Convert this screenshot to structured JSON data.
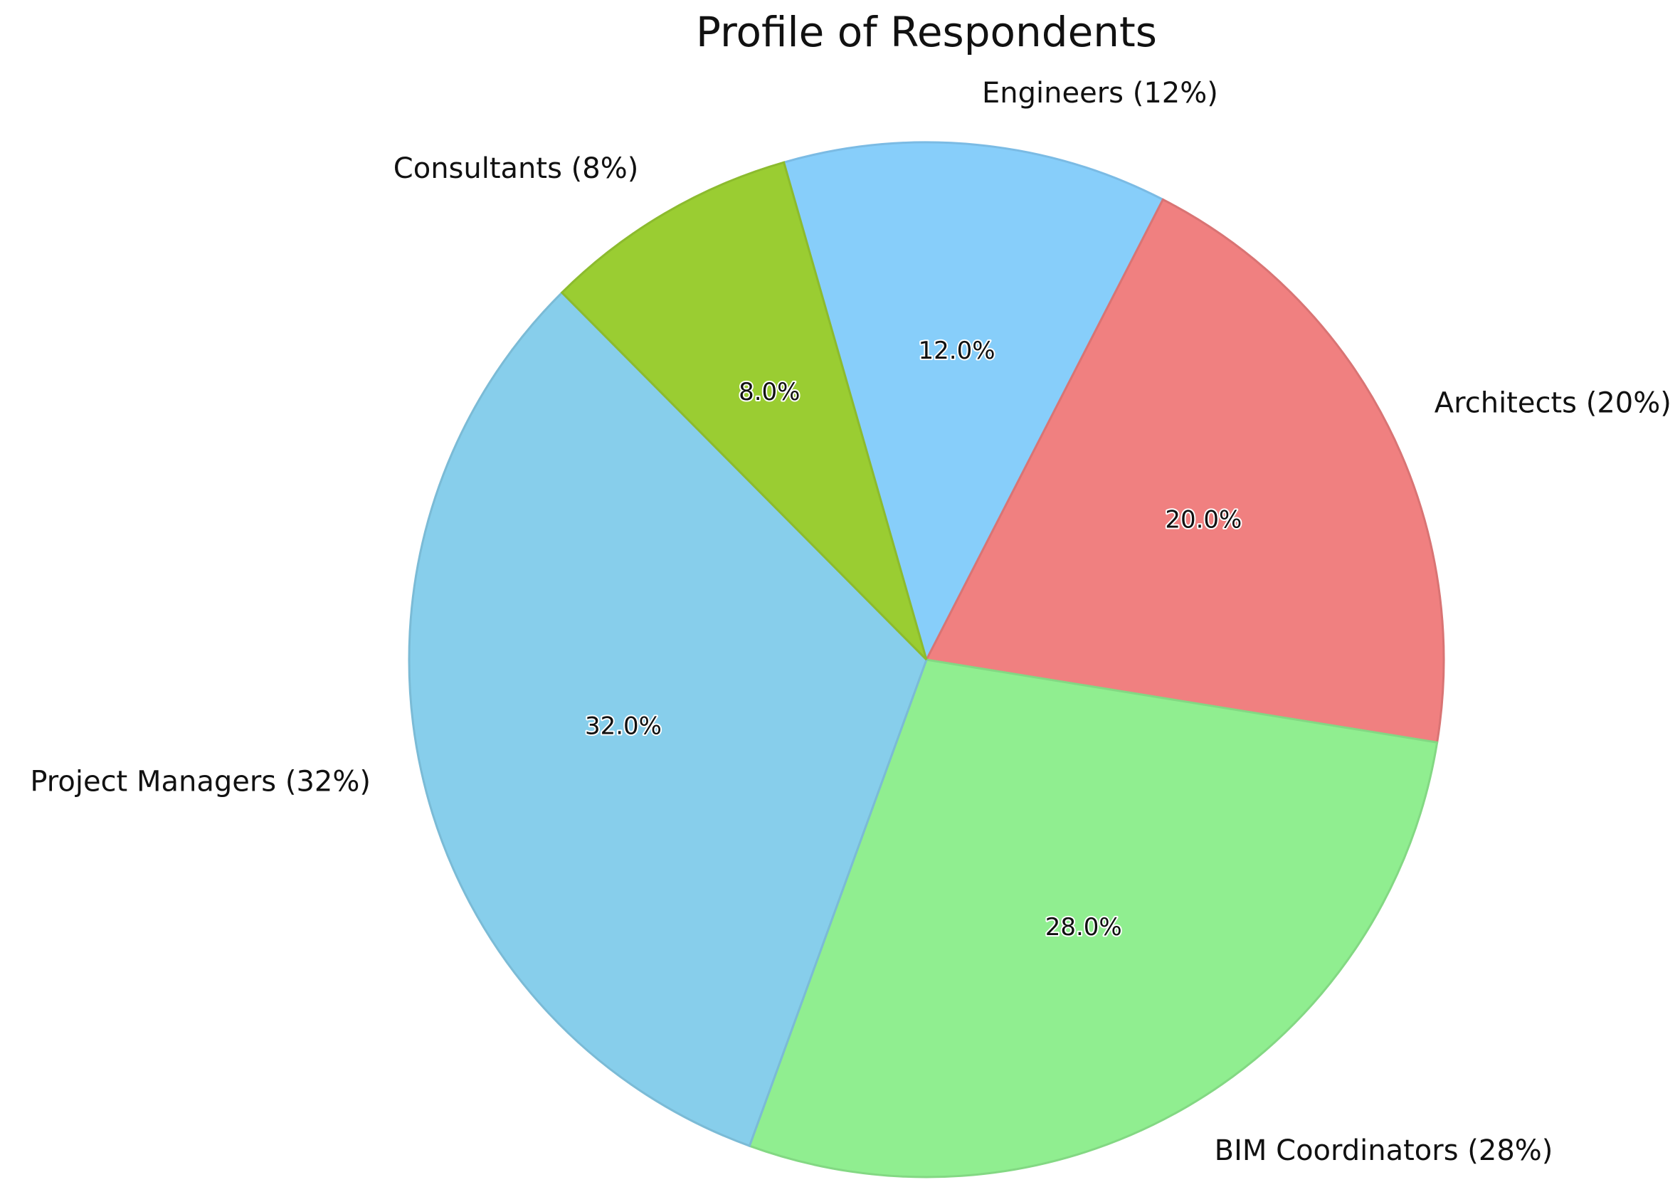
{
  "chart_data": {
    "type": "pie",
    "title": "Profile of Respondents",
    "start_angle_deg": 106,
    "direction": "clockwise",
    "slices": [
      {
        "label": "Engineers (12%)",
        "value": 12,
        "pct_label": "12.0%",
        "color": "#87CEFA",
        "edge": "#7bbbe4"
      },
      {
        "label": "Architects (20%)",
        "value": 20,
        "pct_label": "20.0%",
        "color": "#F08080",
        "edge": "#d97474"
      },
      {
        "label": "BIM Coordinators (28%)",
        "value": 28,
        "pct_label": "28.0%",
        "color": "#90EE90",
        "edge": "#83d883"
      },
      {
        "label": "Project Managers (32%)",
        "value": 32,
        "pct_label": "32.0%",
        "color": "#87CEEB",
        "edge": "#7bbbd6"
      },
      {
        "label": "Consultants (8%)",
        "value": 8,
        "pct_label": "8.0%",
        "color": "#9ACD32",
        "edge": "#8cbb2e"
      }
    ]
  }
}
